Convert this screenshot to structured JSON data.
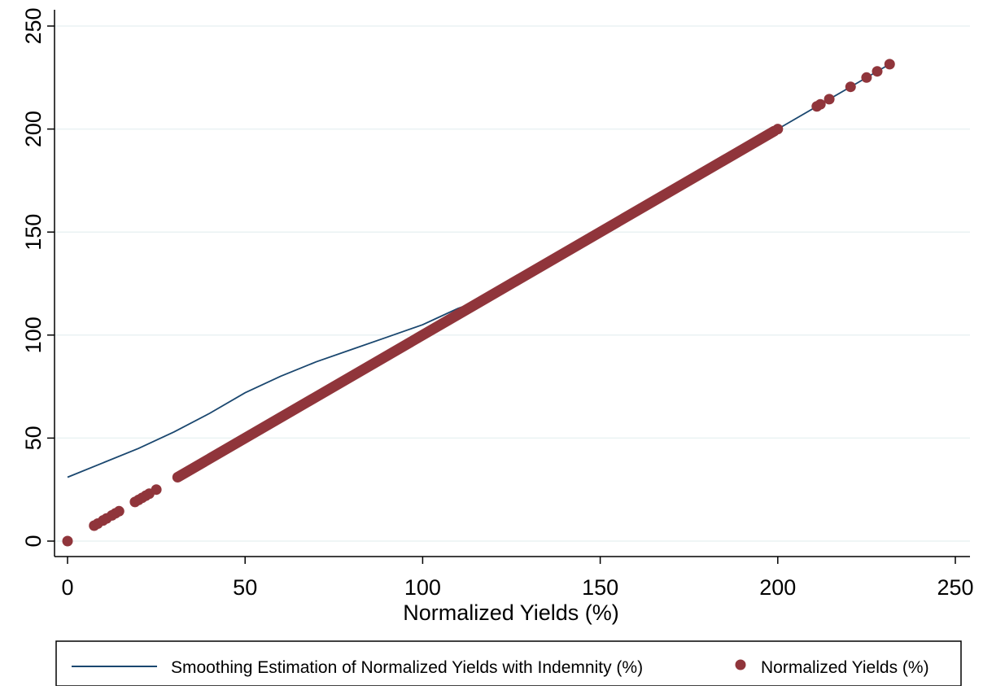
{
  "chart_data": {
    "type": "scatter",
    "title": "",
    "xlabel": "Normalized Yields (%)",
    "ylabel": "",
    "xlim": [
      0,
      250
    ],
    "ylim": [
      0,
      250
    ],
    "x_ticks": [
      0,
      50,
      100,
      150,
      200,
      250
    ],
    "y_ticks": [
      0,
      50,
      100,
      150,
      200,
      250
    ],
    "x_tick_labels": [
      "0",
      "50",
      "100",
      "150",
      "200",
      "250"
    ],
    "y_tick_labels": [
      "0",
      "50",
      "100",
      "150",
      "200",
      "250"
    ],
    "grid": "horizontal",
    "legend_position": "bottom",
    "series": [
      {
        "name": "Smoothing Estimation of Normalized Yields with Indemnity (%)",
        "type": "line",
        "color": "#1a476f",
        "x": [
          0,
          10,
          20,
          30,
          40,
          50,
          60,
          70,
          80,
          90,
          100,
          105,
          110,
          115,
          120,
          130,
          150,
          180,
          200,
          220,
          231
        ],
        "y": [
          31,
          38,
          45,
          53,
          62,
          72,
          80,
          87,
          93,
          99,
          105,
          109,
          113,
          116,
          120,
          130,
          150,
          180,
          200,
          220,
          231
        ]
      },
      {
        "name": "Normalized Yields (%)",
        "type": "scatter",
        "color": "#90353b",
        "dense_segments": [
          [
            31,
            199
          ]
        ],
        "x": [
          0,
          7.5,
          8.5,
          10,
          11,
          12.5,
          13.5,
          14.5,
          19,
          20,
          21,
          22,
          23,
          25,
          200,
          211,
          212,
          214.5,
          220.5,
          225,
          228,
          231.5
        ],
        "y": [
          0,
          7.5,
          8.5,
          10,
          11,
          12.5,
          13.5,
          14.5,
          19,
          20,
          21,
          22,
          23,
          25,
          200,
          211,
          212,
          214.5,
          220.5,
          225,
          228,
          231.5
        ]
      }
    ]
  }
}
